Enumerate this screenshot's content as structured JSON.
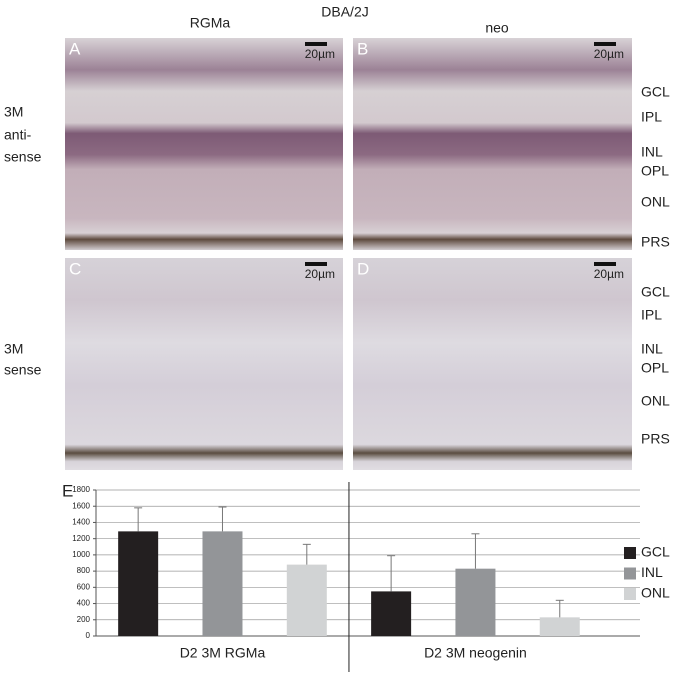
{
  "header": {
    "strain": "DBA/2J",
    "columns": [
      "RGMa",
      "neo"
    ]
  },
  "rows": [
    {
      "label_lines": [
        "3M",
        "anti-",
        "sense"
      ],
      "panels": [
        {
          "letter": "A",
          "scale": "20µm"
        },
        {
          "letter": "B",
          "scale": "20µm"
        }
      ],
      "layers": [
        "GCL",
        "IPL",
        "INL",
        "OPL",
        "ONL",
        "PRS"
      ]
    },
    {
      "label_lines": [
        "3M",
        "sense"
      ],
      "panels": [
        {
          "letter": "C",
          "scale": "20µm"
        },
        {
          "letter": "D",
          "scale": "20µm"
        }
      ],
      "layers": [
        "GCL",
        "IPL",
        "INL",
        "OPL",
        "ONL",
        "PRS"
      ]
    }
  ],
  "chart_data": {
    "type": "bar",
    "panel_letter": "E",
    "categories": [
      "D2 3M RGMa",
      "D2 3M neogenin"
    ],
    "series": [
      {
        "name": "GCL",
        "color": "#231f20",
        "values": [
          1290,
          550
        ],
        "errors": [
          290,
          440
        ]
      },
      {
        "name": "INL",
        "color": "#939598",
        "values": [
          1290,
          830
        ],
        "errors": [
          300,
          430
        ]
      },
      {
        "name": "ONL",
        "color": "#d1d3d4",
        "values": [
          880,
          230
        ],
        "errors": [
          250,
          210
        ]
      }
    ],
    "ylim": [
      0,
      1800
    ],
    "yticks": [
      0,
      200,
      400,
      600,
      800,
      1000,
      1200,
      1400,
      1600,
      1800
    ],
    "grid": true,
    "legend": "right"
  }
}
